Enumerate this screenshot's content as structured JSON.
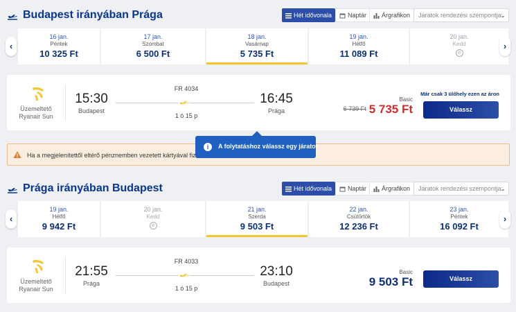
{
  "outbound": {
    "title": "Budapest irányában Prága",
    "view_buttons": {
      "week": "Hét idővonala",
      "calendar": "Naptár",
      "chart": "Árgrafikon"
    },
    "sort_placeholder": "Járatok rendezési szempontja:",
    "dates": [
      {
        "date": "16 jan.",
        "day": "Péntek",
        "price": "10 325 Ft"
      },
      {
        "date": "17 jan.",
        "day": "Szombat",
        "price": "6 500 Ft"
      },
      {
        "date": "18 jan.",
        "day": "Vasárnap",
        "price": "5 735 Ft",
        "selected": true
      },
      {
        "date": "19 jan.",
        "day": "Hétfő",
        "price": "11 089 Ft"
      },
      {
        "date": "20 jan.",
        "day": "Kedd",
        "price": "",
        "no_flight": true
      }
    ],
    "flight": {
      "operator_label": "Üzemeltető",
      "operator": "Ryanair Sun",
      "dep_time": "15:30",
      "dep_city": "Budapest",
      "flight_no": "FR 4034",
      "duration": "1 ó 15 p",
      "arr_time": "16:45",
      "arr_city": "Prága",
      "fare": "Basic",
      "old_price": "6 739 Ft",
      "price": "5 735 Ft",
      "seats_left": "Már csak 3 ülőhely ezen az áron",
      "select_label": "Válassz"
    }
  },
  "warning": {
    "text": "Ha a megjelenítettől eltérő pénznemben vezetett kártyával fizet, a"
  },
  "tooltip": {
    "text": "A folytatáshoz válassz egy járatot"
  },
  "inbound": {
    "title": "Prága irányában Budapest",
    "view_buttons": {
      "week": "Hét idővonala",
      "calendar": "Naptár",
      "chart": "Árgrafikon"
    },
    "sort_placeholder": "Járatok rendezési szempontja:",
    "dates": [
      {
        "date": "19 jan.",
        "day": "Hétfő",
        "price": "9 942 Ft"
      },
      {
        "date": "20 jan.",
        "day": "Kedd",
        "price": "",
        "no_flight": true
      },
      {
        "date": "21 jan.",
        "day": "Szerda",
        "price": "9 503 Ft",
        "selected": true
      },
      {
        "date": "22 jan.",
        "day": "Csütörtök",
        "price": "12 236 Ft"
      },
      {
        "date": "23 jan.",
        "day": "Péntek",
        "price": "16 092 Ft"
      }
    ],
    "flight": {
      "operator_label": "Üzemeltető",
      "operator": "Ryanair Sun",
      "dep_time": "21:55",
      "dep_city": "Prága",
      "flight_no": "FR 4033",
      "duration": "1 ó 15 p",
      "arr_time": "23:10",
      "arr_city": "Budapest",
      "fare": "Basic",
      "price": "9 503 Ft",
      "select_label": "Válassz"
    }
  },
  "colors": {
    "brand_navy": "#073590",
    "price_red": "#d12b2b",
    "price_navy": "#0b2f78",
    "selected_underline": "#f5c62b",
    "tooltip_blue": "#1f60c0",
    "ryanair_yellow": "#f1c933"
  },
  "icons": {
    "section": "plane-takeoff-icon",
    "calendar": "calendar-icon",
    "chart": "bar-chart-icon",
    "no_flight": "no-flight-icon",
    "warning": "warning-triangle-icon",
    "info": "info-icon",
    "logo": "ryanair-harp-logo"
  }
}
